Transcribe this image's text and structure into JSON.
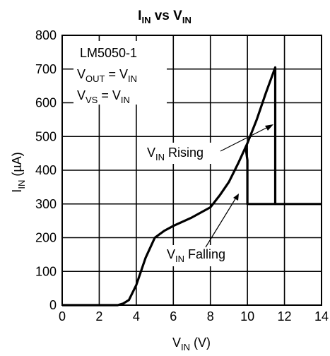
{
  "chart_data": {
    "type": "line",
    "title": {
      "main": "I",
      "main_sub": "IN",
      "mid": " vs V",
      "mid_sub": "IN"
    },
    "xlabel": {
      "main": "V",
      "sub": "IN",
      "tail": " (V)"
    },
    "ylabel": {
      "main": "I",
      "sub": "IN",
      "tail": " (µA)"
    },
    "xlim": [
      0,
      14
    ],
    "ylim": [
      0,
      800
    ],
    "x_ticks": [
      0,
      2,
      4,
      6,
      8,
      10,
      12,
      14
    ],
    "y_ticks": [
      0,
      100,
      200,
      300,
      400,
      500,
      600,
      700,
      800
    ],
    "grid": true,
    "annotations": {
      "device": "LM5050-1",
      "vout": {
        "a": "V",
        "a_sub": "OUT",
        "b": " = V",
        "b_sub": "IN"
      },
      "vvs": {
        "a": "V",
        "a_sub": "VS",
        "b": " = V",
        "b_sub": "IN"
      },
      "rising": {
        "a": "V",
        "a_sub": "IN",
        "b": " Rising"
      },
      "falling": {
        "a": "V",
        "a_sub": "IN",
        "b": " Falling"
      }
    },
    "series": [
      {
        "name": "Rising",
        "x": [
          0,
          3.0,
          3.3,
          3.6,
          4.0,
          4.5,
          5.0,
          5.5,
          6.0,
          7.0,
          8.0,
          8.5,
          9.0,
          9.5,
          10.0,
          10.5,
          11.0,
          11.5,
          11.5,
          11.6,
          14
        ],
        "y": [
          0,
          0,
          5,
          15,
          60,
          140,
          200,
          220,
          235,
          260,
          290,
          325,
          365,
          420,
          480,
          550,
          630,
          705,
          300,
          300,
          300
        ]
      },
      {
        "name": "Falling",
        "x": [
          9.9,
          10.0,
          10.0,
          11.5
        ],
        "y": [
          470,
          430,
          300,
          300
        ]
      }
    ]
  }
}
